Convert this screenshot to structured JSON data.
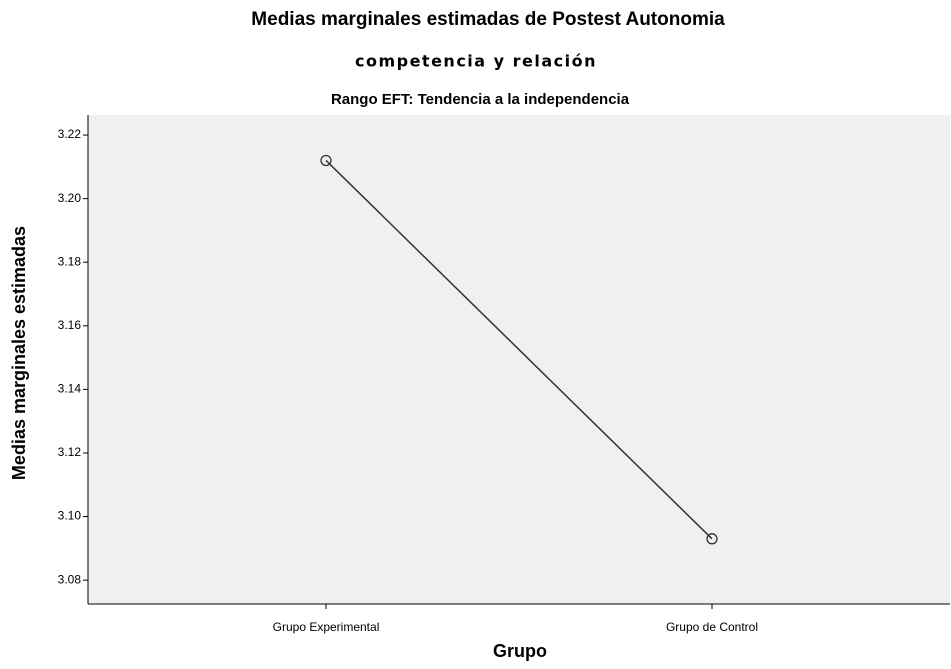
{
  "chart_data": {
    "type": "line",
    "title": "Medias marginales estimadas de Postest Autonomia",
    "title_line2": "competencia y relación",
    "subtitle": "Rango EFT: Tendencia a la independencia",
    "y_label": "Medias marginales estimadas",
    "x_label": "Grupo",
    "categories": [
      "Grupo Experimental",
      "Grupo de Control"
    ],
    "values": [
      3.212,
      3.093
    ],
    "color": "#333333",
    "ylim": [
      3.0725,
      3.2263
    ],
    "yticks": [
      {
        "value": 3.08,
        "label": "3.08"
      },
      {
        "value": 3.1,
        "label": "3.10"
      },
      3.12,
      3.14,
      3.16,
      3.18,
      {
        "value": 3.2,
        "label": "3.20"
      },
      3.22
    ],
    "grid": false
  }
}
